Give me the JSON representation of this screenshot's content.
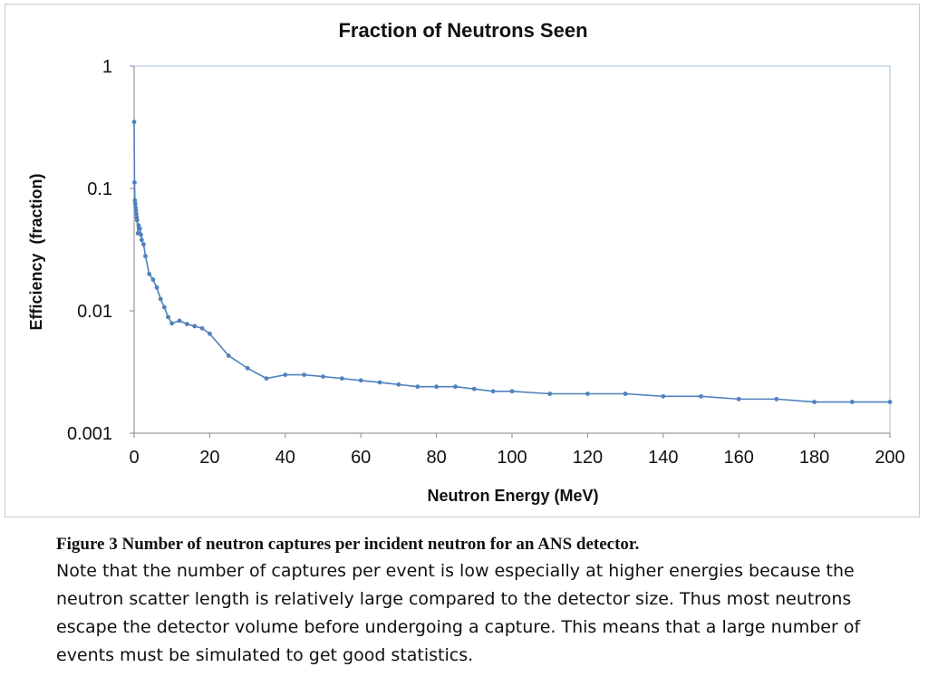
{
  "chart_data": {
    "type": "line",
    "title": "Fraction of Neutrons Seen",
    "xlabel": "Neutron Energy (MeV)",
    "ylabel": "Efficiency  (fraction)",
    "xlim": [
      0,
      200
    ],
    "ylim": [
      0.001,
      1
    ],
    "yscale": "log",
    "xticks": [
      "0",
      "20",
      "40",
      "60",
      "80",
      "100",
      "120",
      "140",
      "160",
      "180",
      "200"
    ],
    "yticks": [
      "1",
      "0.1",
      "0.01",
      "0.001"
    ],
    "grid": false,
    "legend": "none",
    "series": [
      {
        "color": "#4f81bd",
        "x": [
          0.01,
          0.1,
          0.2,
          0.3,
          0.4,
          0.5,
          0.6,
          0.7,
          0.8,
          1,
          1.2,
          1.5,
          1.8,
          2,
          2.5,
          3,
          4,
          5,
          6,
          7,
          8,
          9,
          10,
          12,
          14,
          16,
          18,
          20,
          25,
          30,
          35,
          40,
          45,
          50,
          55,
          60,
          65,
          70,
          75,
          80,
          85,
          90,
          95,
          100,
          110,
          120,
          130,
          140,
          150,
          160,
          170,
          180,
          190,
          200
        ],
        "y": [
          0.35,
          0.112,
          0.08,
          0.075,
          0.07,
          0.066,
          0.062,
          0.058,
          0.055,
          0.043,
          0.05,
          0.047,
          0.042,
          0.038,
          0.035,
          0.028,
          0.02,
          0.018,
          0.0155,
          0.0125,
          0.0107,
          0.0089,
          0.0079,
          0.0083,
          0.0078,
          0.0075,
          0.0072,
          0.0065,
          0.0043,
          0.0034,
          0.0028,
          0.003,
          0.003,
          0.0029,
          0.0028,
          0.0027,
          0.0026,
          0.0025,
          0.0024,
          0.0024,
          0.0024,
          0.0023,
          0.0022,
          0.0022,
          0.0021,
          0.0021,
          0.0021,
          0.002,
          0.002,
          0.0019,
          0.0019,
          0.0018,
          0.0018,
          0.0018
        ]
      }
    ]
  },
  "caption": {
    "title": "Figure 3 Number of neutron captures per incident neutron for an ANS detector.",
    "body": "Note that the number of captures per event is low especially at higher energies because the neutron scatter length is relatively large compared to the detector size. Thus most neutrons escape the detector volume before undergoing a capture. This means that a large number of events must be simulated to get good statistics."
  }
}
